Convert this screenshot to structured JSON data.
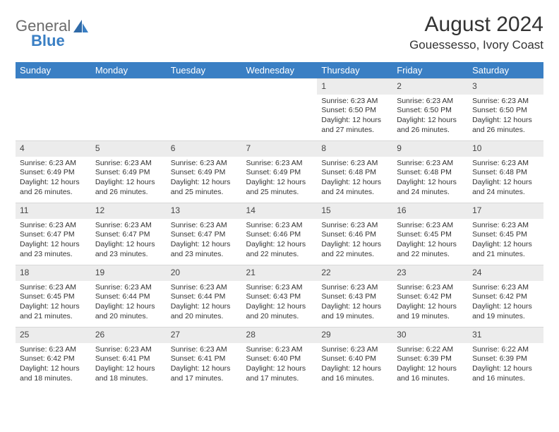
{
  "brand": {
    "line1": "General",
    "line2": "Blue",
    "color_gray": "#6b6b6b",
    "color_blue": "#3a7fc4"
  },
  "title": "August 2024",
  "location": "Gouessesso, Ivory Coast",
  "header_bg": "#3a7fc4",
  "daynum_bg": "#ececec",
  "weekdays": [
    "Sunday",
    "Monday",
    "Tuesday",
    "Wednesday",
    "Thursday",
    "Friday",
    "Saturday"
  ],
  "weeks": [
    [
      {
        "n": "",
        "lines": [
          "",
          "",
          "",
          ""
        ]
      },
      {
        "n": "",
        "lines": [
          "",
          "",
          "",
          ""
        ]
      },
      {
        "n": "",
        "lines": [
          "",
          "",
          "",
          ""
        ]
      },
      {
        "n": "",
        "lines": [
          "",
          "",
          "",
          ""
        ]
      },
      {
        "n": "1",
        "lines": [
          "Sunrise: 6:23 AM",
          "Sunset: 6:50 PM",
          "Daylight: 12 hours",
          "and 27 minutes."
        ]
      },
      {
        "n": "2",
        "lines": [
          "Sunrise: 6:23 AM",
          "Sunset: 6:50 PM",
          "Daylight: 12 hours",
          "and 26 minutes."
        ]
      },
      {
        "n": "3",
        "lines": [
          "Sunrise: 6:23 AM",
          "Sunset: 6:50 PM",
          "Daylight: 12 hours",
          "and 26 minutes."
        ]
      }
    ],
    [
      {
        "n": "4",
        "lines": [
          "Sunrise: 6:23 AM",
          "Sunset: 6:49 PM",
          "Daylight: 12 hours",
          "and 26 minutes."
        ]
      },
      {
        "n": "5",
        "lines": [
          "Sunrise: 6:23 AM",
          "Sunset: 6:49 PM",
          "Daylight: 12 hours",
          "and 26 minutes."
        ]
      },
      {
        "n": "6",
        "lines": [
          "Sunrise: 6:23 AM",
          "Sunset: 6:49 PM",
          "Daylight: 12 hours",
          "and 25 minutes."
        ]
      },
      {
        "n": "7",
        "lines": [
          "Sunrise: 6:23 AM",
          "Sunset: 6:49 PM",
          "Daylight: 12 hours",
          "and 25 minutes."
        ]
      },
      {
        "n": "8",
        "lines": [
          "Sunrise: 6:23 AM",
          "Sunset: 6:48 PM",
          "Daylight: 12 hours",
          "and 24 minutes."
        ]
      },
      {
        "n": "9",
        "lines": [
          "Sunrise: 6:23 AM",
          "Sunset: 6:48 PM",
          "Daylight: 12 hours",
          "and 24 minutes."
        ]
      },
      {
        "n": "10",
        "lines": [
          "Sunrise: 6:23 AM",
          "Sunset: 6:48 PM",
          "Daylight: 12 hours",
          "and 24 minutes."
        ]
      }
    ],
    [
      {
        "n": "11",
        "lines": [
          "Sunrise: 6:23 AM",
          "Sunset: 6:47 PM",
          "Daylight: 12 hours",
          "and 23 minutes."
        ]
      },
      {
        "n": "12",
        "lines": [
          "Sunrise: 6:23 AM",
          "Sunset: 6:47 PM",
          "Daylight: 12 hours",
          "and 23 minutes."
        ]
      },
      {
        "n": "13",
        "lines": [
          "Sunrise: 6:23 AM",
          "Sunset: 6:47 PM",
          "Daylight: 12 hours",
          "and 23 minutes."
        ]
      },
      {
        "n": "14",
        "lines": [
          "Sunrise: 6:23 AM",
          "Sunset: 6:46 PM",
          "Daylight: 12 hours",
          "and 22 minutes."
        ]
      },
      {
        "n": "15",
        "lines": [
          "Sunrise: 6:23 AM",
          "Sunset: 6:46 PM",
          "Daylight: 12 hours",
          "and 22 minutes."
        ]
      },
      {
        "n": "16",
        "lines": [
          "Sunrise: 6:23 AM",
          "Sunset: 6:45 PM",
          "Daylight: 12 hours",
          "and 22 minutes."
        ]
      },
      {
        "n": "17",
        "lines": [
          "Sunrise: 6:23 AM",
          "Sunset: 6:45 PM",
          "Daylight: 12 hours",
          "and 21 minutes."
        ]
      }
    ],
    [
      {
        "n": "18",
        "lines": [
          "Sunrise: 6:23 AM",
          "Sunset: 6:45 PM",
          "Daylight: 12 hours",
          "and 21 minutes."
        ]
      },
      {
        "n": "19",
        "lines": [
          "Sunrise: 6:23 AM",
          "Sunset: 6:44 PM",
          "Daylight: 12 hours",
          "and 20 minutes."
        ]
      },
      {
        "n": "20",
        "lines": [
          "Sunrise: 6:23 AM",
          "Sunset: 6:44 PM",
          "Daylight: 12 hours",
          "and 20 minutes."
        ]
      },
      {
        "n": "21",
        "lines": [
          "Sunrise: 6:23 AM",
          "Sunset: 6:43 PM",
          "Daylight: 12 hours",
          "and 20 minutes."
        ]
      },
      {
        "n": "22",
        "lines": [
          "Sunrise: 6:23 AM",
          "Sunset: 6:43 PM",
          "Daylight: 12 hours",
          "and 19 minutes."
        ]
      },
      {
        "n": "23",
        "lines": [
          "Sunrise: 6:23 AM",
          "Sunset: 6:42 PM",
          "Daylight: 12 hours",
          "and 19 minutes."
        ]
      },
      {
        "n": "24",
        "lines": [
          "Sunrise: 6:23 AM",
          "Sunset: 6:42 PM",
          "Daylight: 12 hours",
          "and 19 minutes."
        ]
      }
    ],
    [
      {
        "n": "25",
        "lines": [
          "Sunrise: 6:23 AM",
          "Sunset: 6:42 PM",
          "Daylight: 12 hours",
          "and 18 minutes."
        ]
      },
      {
        "n": "26",
        "lines": [
          "Sunrise: 6:23 AM",
          "Sunset: 6:41 PM",
          "Daylight: 12 hours",
          "and 18 minutes."
        ]
      },
      {
        "n": "27",
        "lines": [
          "Sunrise: 6:23 AM",
          "Sunset: 6:41 PM",
          "Daylight: 12 hours",
          "and 17 minutes."
        ]
      },
      {
        "n": "28",
        "lines": [
          "Sunrise: 6:23 AM",
          "Sunset: 6:40 PM",
          "Daylight: 12 hours",
          "and 17 minutes."
        ]
      },
      {
        "n": "29",
        "lines": [
          "Sunrise: 6:23 AM",
          "Sunset: 6:40 PM",
          "Daylight: 12 hours",
          "and 16 minutes."
        ]
      },
      {
        "n": "30",
        "lines": [
          "Sunrise: 6:22 AM",
          "Sunset: 6:39 PM",
          "Daylight: 12 hours",
          "and 16 minutes."
        ]
      },
      {
        "n": "31",
        "lines": [
          "Sunrise: 6:22 AM",
          "Sunset: 6:39 PM",
          "Daylight: 12 hours",
          "and 16 minutes."
        ]
      }
    ]
  ]
}
